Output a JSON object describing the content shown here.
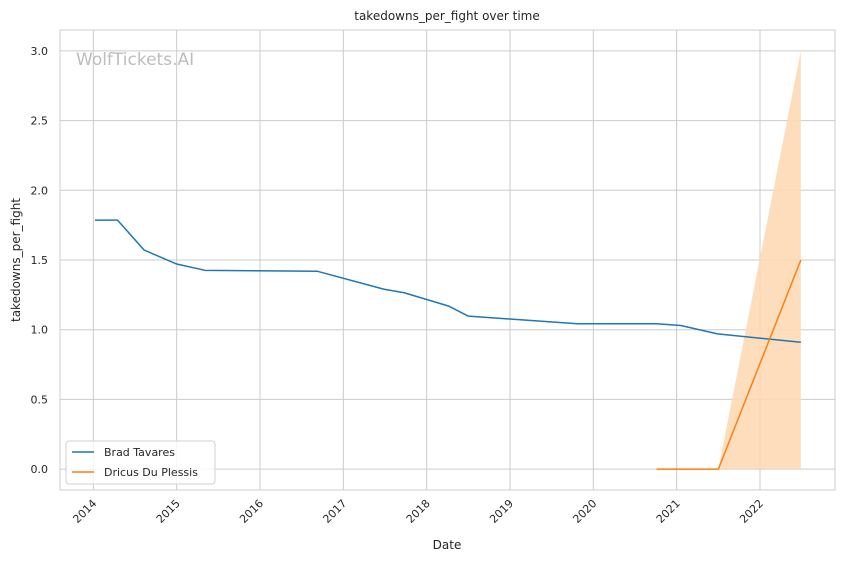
{
  "chart_data": {
    "type": "line",
    "title": "takedowns_per_fight over time",
    "xlabel": "Date",
    "ylabel": "takedowns_per_fight",
    "xlim": [
      2013.6,
      2022.9
    ],
    "ylim": [
      -0.15,
      3.15
    ],
    "grid": true,
    "legend_position": "bottom-left",
    "watermark": "WolfTickets.AI",
    "x_ticks": [
      2014,
      2015,
      2016,
      2017,
      2018,
      2019,
      2020,
      2021,
      2022
    ],
    "x_tick_labels": [
      "2014",
      "2015",
      "2016",
      "2017",
      "2018",
      "2019",
      "2020",
      "2021",
      "2022"
    ],
    "y_ticks": [
      0,
      0.5,
      1,
      1.5,
      2,
      2.5,
      3
    ],
    "y_tick_labels": [
      "0.0",
      "0.5",
      "1.0",
      "1.5",
      "2.0",
      "2.5",
      "3.0"
    ],
    "series": [
      {
        "name": "Brad Tavares",
        "color": "#1f77b4",
        "x": [
          2014.02,
          2014.29,
          2014.61,
          2015.0,
          2015.34,
          2016.69,
          2017.49,
          2017.73,
          2018.27,
          2018.5,
          2019.81,
          2020.76,
          2021.05,
          2021.49,
          2022.49
        ],
        "y": [
          1.786,
          1.786,
          1.571,
          1.471,
          1.426,
          1.419,
          1.29,
          1.265,
          1.168,
          1.097,
          1.043,
          1.043,
          1.03,
          0.97,
          0.91
        ]
      },
      {
        "name": "Dricus Du Plessis",
        "color": "#ff7f0e",
        "x": [
          2020.76,
          2021.5,
          2022.49
        ],
        "y": [
          0,
          0,
          1.5
        ],
        "ci_lower": [
          0,
          0,
          0
        ],
        "ci_upper": [
          0,
          0,
          3.0
        ],
        "ci_color": "#fdd9b5"
      }
    ]
  }
}
